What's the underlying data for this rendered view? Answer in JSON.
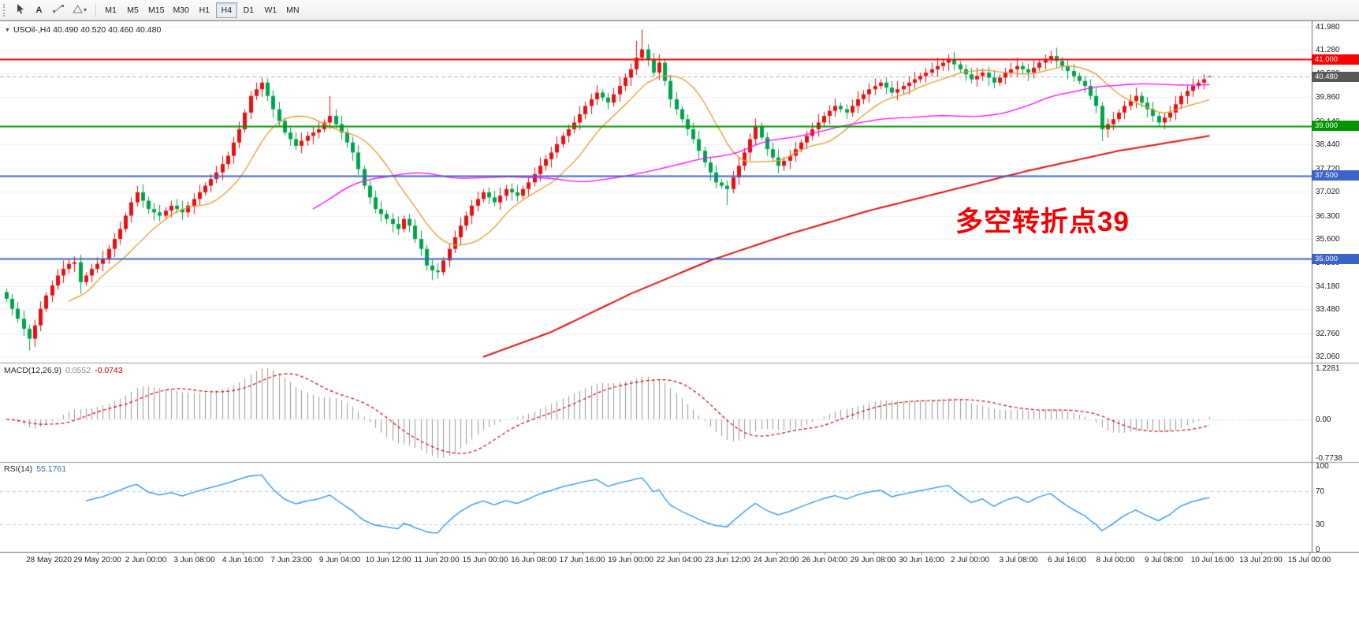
{
  "toolbar": {
    "tools": [
      {
        "name": "cursor-tool"
      },
      {
        "name": "text-tool",
        "label": "A"
      },
      {
        "name": "trendline-tool"
      },
      {
        "name": "shapes-tool"
      }
    ],
    "timeframes": [
      "M1",
      "M5",
      "M15",
      "M30",
      "H1",
      "H4",
      "D1",
      "W1",
      "MN"
    ],
    "active_timeframe": "H4"
  },
  "chart": {
    "symbol_header": "USOil-,H4 40.490 40.520 40.460 40.480",
    "annotation": "多空转折点39",
    "annotation_color": "#f40000",
    "price_axis_labels": [
      "41.980",
      "41.280",
      "40.580",
      "39.860",
      "39.140",
      "38.440",
      "37.720",
      "37.020",
      "36.300",
      "35.600",
      "34.880",
      "34.180",
      "33.480",
      "32.760",
      "32.060"
    ],
    "levels": [
      {
        "label": "41.000",
        "price": 41.0,
        "color": "#fe0000"
      },
      {
        "label": "39.000",
        "price": 39.0,
        "color": "#009600"
      },
      {
        "label": "37.500",
        "price": 37.5,
        "color": "#3c64c8"
      },
      {
        "label": "35.000",
        "price": 35.0,
        "color": "#3c64c8"
      }
    ],
    "current_price": {
      "label": "40.480",
      "price": 40.48,
      "tag_color": "#58585a"
    }
  },
  "macd": {
    "name": "MACD(12,26,9)",
    "value_main": "0.0552",
    "value_signal": "-0.0743",
    "scale_labels": [
      "1.2281",
      "0.00",
      "-0.7738"
    ]
  },
  "rsi": {
    "name": "RSI(14)",
    "value": "55.1761",
    "scale_labels": [
      "100",
      "70",
      "30",
      "0"
    ],
    "levels": [
      70,
      30
    ]
  },
  "time_axis": [
    "28 May 2020",
    "29 May 20:00",
    "2 Jun 00:00",
    "3 Jun 08:00",
    "4 Jun 16:00",
    "7 Jun 23:00",
    "9 Jun 04:00",
    "10 Jun 12:00",
    "11 Jun 20:00",
    "15 Jun 00:00",
    "16 Jun 08:00",
    "17 Jun 16:00",
    "19 Jun 00:00",
    "22 Jun 04:00",
    "23 Jun 12:00",
    "24 Jun 20:00",
    "26 Jun 04:00",
    "29 Jun 08:00",
    "30 Jun 16:00",
    "2 Jul 00:00",
    "3 Jul 08:00",
    "6 Jul 16:00",
    "8 Jul 00:00",
    "9 Jul 08:00",
    "10 Jul 16:00",
    "13 Jul 20:00",
    "15 Jul 00:00"
  ],
  "chart_data": {
    "type": "candlestick",
    "symbol": "USOil-",
    "timeframe": "H4",
    "last_ohlc": {
      "open": 40.49,
      "high": 40.52,
      "low": 40.46,
      "close": 40.48
    },
    "price_axis_range": [
      32.06,
      41.98
    ],
    "first_open": 34.0,
    "closes": [
      33.8,
      33.5,
      33.2,
      32.9,
      32.6,
      33.0,
      33.5,
      33.9,
      34.2,
      34.5,
      34.7,
      34.85,
      34.9,
      34.3,
      34.5,
      34.7,
      34.85,
      35.0,
      35.3,
      35.6,
      35.9,
      36.3,
      36.7,
      37.0,
      36.75,
      36.5,
      36.4,
      36.3,
      36.45,
      36.6,
      36.5,
      36.4,
      36.6,
      36.8,
      37.0,
      37.2,
      37.4,
      37.6,
      37.85,
      38.1,
      38.5,
      38.9,
      39.4,
      39.9,
      40.1,
      40.3,
      39.9,
      39.5,
      39.15,
      38.8,
      38.6,
      38.4,
      38.55,
      38.7,
      38.8,
      38.9,
      39.1,
      39.3,
      39.05,
      38.8,
      38.5,
      38.2,
      37.7,
      37.2,
      36.85,
      36.5,
      36.35,
      36.2,
      36.05,
      35.9,
      36.2,
      36.0,
      35.6,
      35.3,
      34.8,
      34.65,
      34.6,
      34.95,
      35.3,
      35.65,
      36.0,
      36.3,
      36.6,
      36.8,
      37.0,
      36.85,
      36.7,
      36.9,
      37.1,
      37.0,
      36.9,
      37.1,
      37.3,
      37.55,
      37.8,
      38.0,
      38.2,
      38.45,
      38.7,
      38.9,
      39.1,
      39.35,
      39.6,
      39.8,
      40.0,
      39.85,
      39.7,
      39.95,
      40.2,
      40.45,
      40.7,
      41.05,
      41.3,
      41.0,
      40.6,
      40.9,
      40.35,
      39.8,
      39.5,
      39.2,
      38.9,
      38.6,
      38.25,
      37.9,
      37.6,
      37.3,
      37.2,
      37.1,
      37.45,
      37.8,
      38.2,
      38.6,
      39.0,
      38.65,
      38.3,
      38.05,
      37.8,
      37.95,
      38.1,
      38.3,
      38.5,
      38.7,
      38.9,
      39.1,
      39.3,
      39.45,
      39.6,
      39.5,
      39.4,
      39.6,
      39.8,
      39.95,
      40.1,
      40.2,
      40.3,
      40.15,
      40.0,
      40.1,
      40.2,
      40.3,
      40.4,
      40.5,
      40.6,
      40.7,
      40.8,
      40.9,
      41.0,
      40.85,
      40.7,
      40.55,
      40.4,
      40.5,
      40.6,
      40.45,
      40.3,
      40.45,
      40.6,
      40.7,
      40.8,
      40.7,
      40.6,
      40.75,
      40.9,
      41.0,
      41.1,
      40.95,
      40.8,
      40.65,
      40.5,
      40.35,
      40.2,
      39.9,
      39.6,
      38.9,
      39.05,
      39.2,
      39.4,
      39.6,
      39.75,
      39.9,
      39.7,
      39.5,
      39.3,
      39.1,
      39.25,
      39.4,
      39.65,
      39.9,
      40.05,
      40.2,
      40.3,
      40.4,
      40.48
    ],
    "wick_overrides": {
      "4": {
        "l": 32.25
      },
      "13": {
        "l": 33.95
      },
      "45": {
        "h": 40.45
      },
      "57": {
        "h": 39.9
      },
      "75": {
        "l": 34.36
      },
      "76": {
        "l": 34.4
      },
      "111": {
        "h": 41.55
      },
      "112": {
        "h": 41.9
      },
      "127": {
        "l": 36.62
      },
      "166": {
        "h": 41.15
      },
      "184": {
        "h": 41.26
      },
      "193": {
        "l": 38.54
      },
      "212": {
        "o": 40.49,
        "h": 40.52,
        "l": 40.46
      }
    },
    "moving_averages": [
      {
        "kind": "sma",
        "period": 12,
        "color": "#e8982c",
        "width": 1.3
      },
      {
        "kind": "sma",
        "period": 55,
        "color": "#ff00ff",
        "width": 1.3
      },
      {
        "kind": "path",
        "color": "#e01010",
        "width": 2,
        "points": [
          [
            84,
            32.05
          ],
          [
            96,
            32.8
          ],
          [
            110,
            33.95
          ],
          [
            124,
            34.95
          ],
          [
            138,
            35.75
          ],
          [
            152,
            36.45
          ],
          [
            166,
            37.05
          ],
          [
            180,
            37.65
          ],
          [
            196,
            38.25
          ],
          [
            212,
            38.7
          ]
        ]
      }
    ],
    "colors": {
      "bull": "#e81010",
      "bear": "#00a44e",
      "macd_hist": "#9a9a9a",
      "macd_signal": "#d40000",
      "rsi_line": "#2090f0",
      "rsi_levels": "#a8cce8",
      "grid": "#efefef",
      "separator": "#9a9a9a",
      "axis_line": "#6e6e6e"
    }
  }
}
